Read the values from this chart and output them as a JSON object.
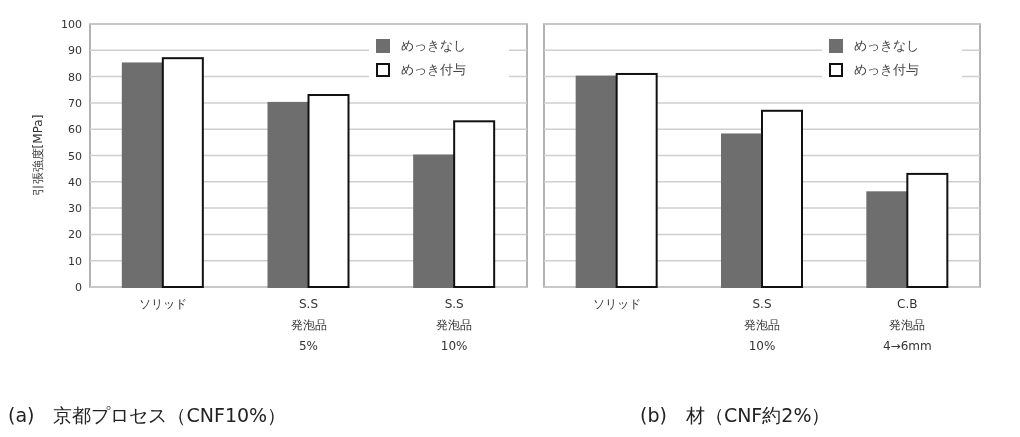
{
  "chart_data": [
    {
      "type": "bar",
      "title": "(a)　京都プロセス（CNF10%）",
      "ylabel": "引張強度[MPa]",
      "categories": [
        "ソリッド",
        "S.S\n発泡品\n5%",
        "S.S\n発泡品\n10%"
      ],
      "series": [
        {
          "name": "めっきなし",
          "color": "#6e6e6e",
          "values": [
            85,
            70,
            50
          ]
        },
        {
          "name": "めっき付与",
          "color": "#ffffff",
          "values": [
            87,
            73,
            63
          ]
        }
      ],
      "ylim": [
        0,
        100
      ],
      "yticks": [
        0,
        10,
        20,
        30,
        40,
        50,
        60,
        70,
        80,
        90,
        100
      ],
      "grid": "y",
      "legend": "top right"
    },
    {
      "type": "bar",
      "title": "(b)　材（CNF約2%）",
      "categories": [
        "ソリッド",
        "S.S\n発泡品\n10%",
        "C.B\n発泡品\n4→6mm"
      ],
      "series": [
        {
          "name": "めっきなし",
          "color": "#6e6e6e",
          "values": [
            80,
            58,
            36
          ]
        },
        {
          "name": "めっき付与",
          "color": "#ffffff",
          "values": [
            81,
            67,
            43
          ]
        }
      ],
      "ylim": [
        0,
        100
      ],
      "yticks": [
        0,
        10,
        20,
        30,
        40,
        50,
        60,
        70,
        80,
        90,
        100
      ],
      "grid": "y",
      "legend": "top right",
      "tick_labels": "x"
    }
  ]
}
